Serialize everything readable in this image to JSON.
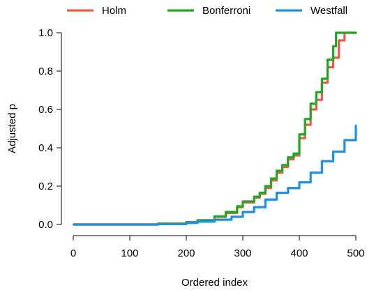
{
  "chart_data": {
    "type": "line",
    "title": "",
    "xlabel": "Ordered index",
    "ylabel": "Adjusted p",
    "xlim": [
      0,
      500
    ],
    "ylim": [
      0,
      1
    ],
    "xticks": [
      0,
      100,
      200,
      300,
      400,
      500
    ],
    "yticks": [
      0.0,
      0.2,
      0.4,
      0.6,
      0.8,
      1.0
    ],
    "xtick_labels": [
      "0",
      "100",
      "200",
      "300",
      "400",
      "500"
    ],
    "ytick_labels": [
      "0.0",
      "0.2",
      "0.4",
      "0.6",
      "0.8",
      "1.0"
    ],
    "grid": false,
    "legend_position": "top",
    "series": [
      {
        "name": "Holm",
        "color": "#f05a4a",
        "x": [
          1,
          100,
          150,
          200,
          220,
          250,
          270,
          290,
          300,
          320,
          330,
          340,
          350,
          360,
          370,
          380,
          390,
          400,
          410,
          420,
          430,
          440,
          450,
          460,
          470,
          480,
          500
        ],
        "y": [
          0.0,
          0.0,
          0.004,
          0.012,
          0.022,
          0.04,
          0.06,
          0.09,
          0.115,
          0.14,
          0.16,
          0.19,
          0.23,
          0.27,
          0.3,
          0.34,
          0.36,
          0.45,
          0.52,
          0.6,
          0.65,
          0.74,
          0.82,
          0.87,
          0.96,
          1.0,
          1.0
        ]
      },
      {
        "name": "Bonferroni",
        "color": "#22a822",
        "x": [
          1,
          100,
          150,
          200,
          220,
          250,
          270,
          290,
          300,
          320,
          330,
          340,
          350,
          360,
          370,
          380,
          390,
          400,
          410,
          420,
          430,
          440,
          450,
          460,
          465,
          470,
          500
        ],
        "y": [
          0.0,
          0.0,
          0.004,
          0.012,
          0.022,
          0.042,
          0.065,
          0.095,
          0.12,
          0.145,
          0.165,
          0.2,
          0.24,
          0.28,
          0.31,
          0.35,
          0.37,
          0.47,
          0.55,
          0.63,
          0.69,
          0.76,
          0.86,
          0.93,
          1.0,
          1.0,
          1.0
        ]
      },
      {
        "name": "Westfall",
        "color": "#1e8fe8",
        "x": [
          1,
          100,
          150,
          200,
          220,
          250,
          280,
          300,
          320,
          340,
          360,
          380,
          400,
          420,
          440,
          460,
          480,
          500
        ],
        "y": [
          0.0,
          0.0,
          0.002,
          0.008,
          0.015,
          0.025,
          0.04,
          0.065,
          0.09,
          0.13,
          0.165,
          0.19,
          0.22,
          0.27,
          0.33,
          0.38,
          0.44,
          0.515
        ]
      }
    ]
  }
}
